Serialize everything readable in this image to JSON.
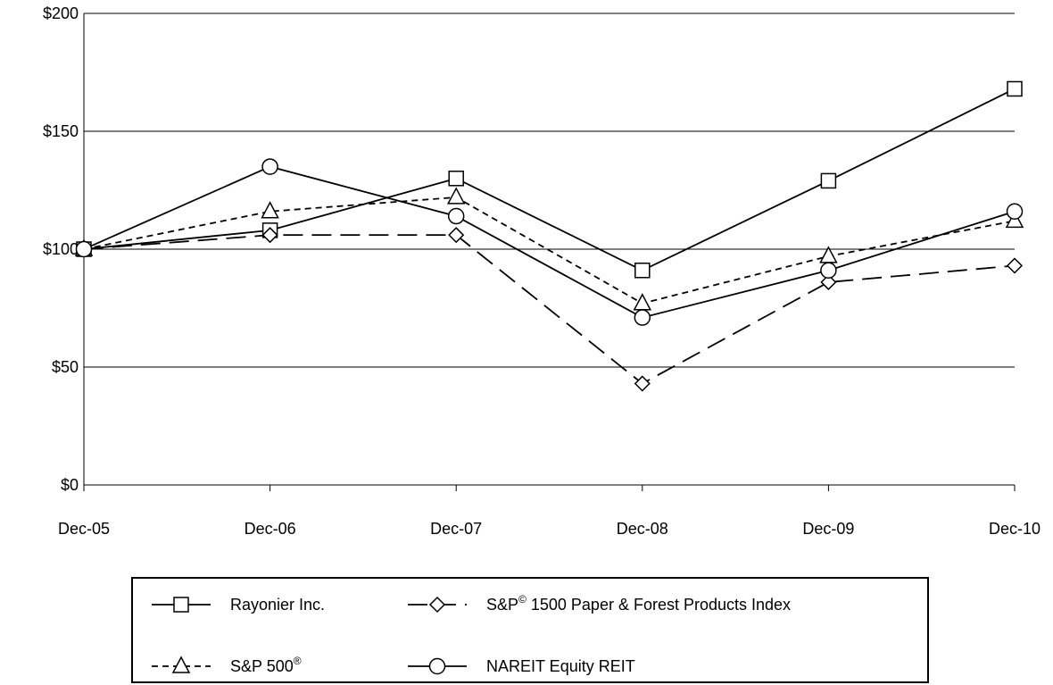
{
  "chart_data": {
    "type": "line",
    "title": "",
    "xlabel": "",
    "ylabel": "",
    "x": [
      "Dec-05",
      "Dec-06",
      "Dec-07",
      "Dec-08",
      "Dec-09",
      "Dec-10"
    ],
    "ylim": [
      0,
      200
    ],
    "yticks": [
      0,
      50,
      100,
      150,
      200
    ],
    "ytick_labels": [
      "$0",
      "$50",
      "$100",
      "$150",
      "$200"
    ],
    "grid": "horizontal",
    "legend_position": "bottom",
    "series": [
      {
        "name": "Rayonier Inc.",
        "legend_text": "Rayonier Inc.",
        "legend_sup": "",
        "legend_after": "",
        "marker": "square",
        "dash": "solid",
        "values": [
          100,
          108,
          130,
          91,
          129,
          168
        ]
      },
      {
        "name": "S&P 1500 Paper & Forest Products Index",
        "legend_text": "S&P",
        "legend_sup": "©",
        "legend_after": " 1500 Paper & Forest Products Index",
        "marker": "diamond",
        "dash": "long",
        "values": [
          100,
          106,
          106,
          43,
          86,
          93
        ]
      },
      {
        "name": "S&P 500",
        "legend_text": "S&P 500",
        "legend_sup": "®",
        "legend_after": "",
        "marker": "triangle",
        "dash": "short",
        "values": [
          100,
          116,
          122,
          77,
          97,
          112
        ]
      },
      {
        "name": "NAREIT Equity REIT",
        "legend_text": "NAREIT Equity REIT",
        "legend_sup": "",
        "legend_after": "",
        "marker": "circle",
        "dash": "solid",
        "values": [
          100,
          135,
          114,
          71,
          91,
          116
        ]
      }
    ]
  }
}
